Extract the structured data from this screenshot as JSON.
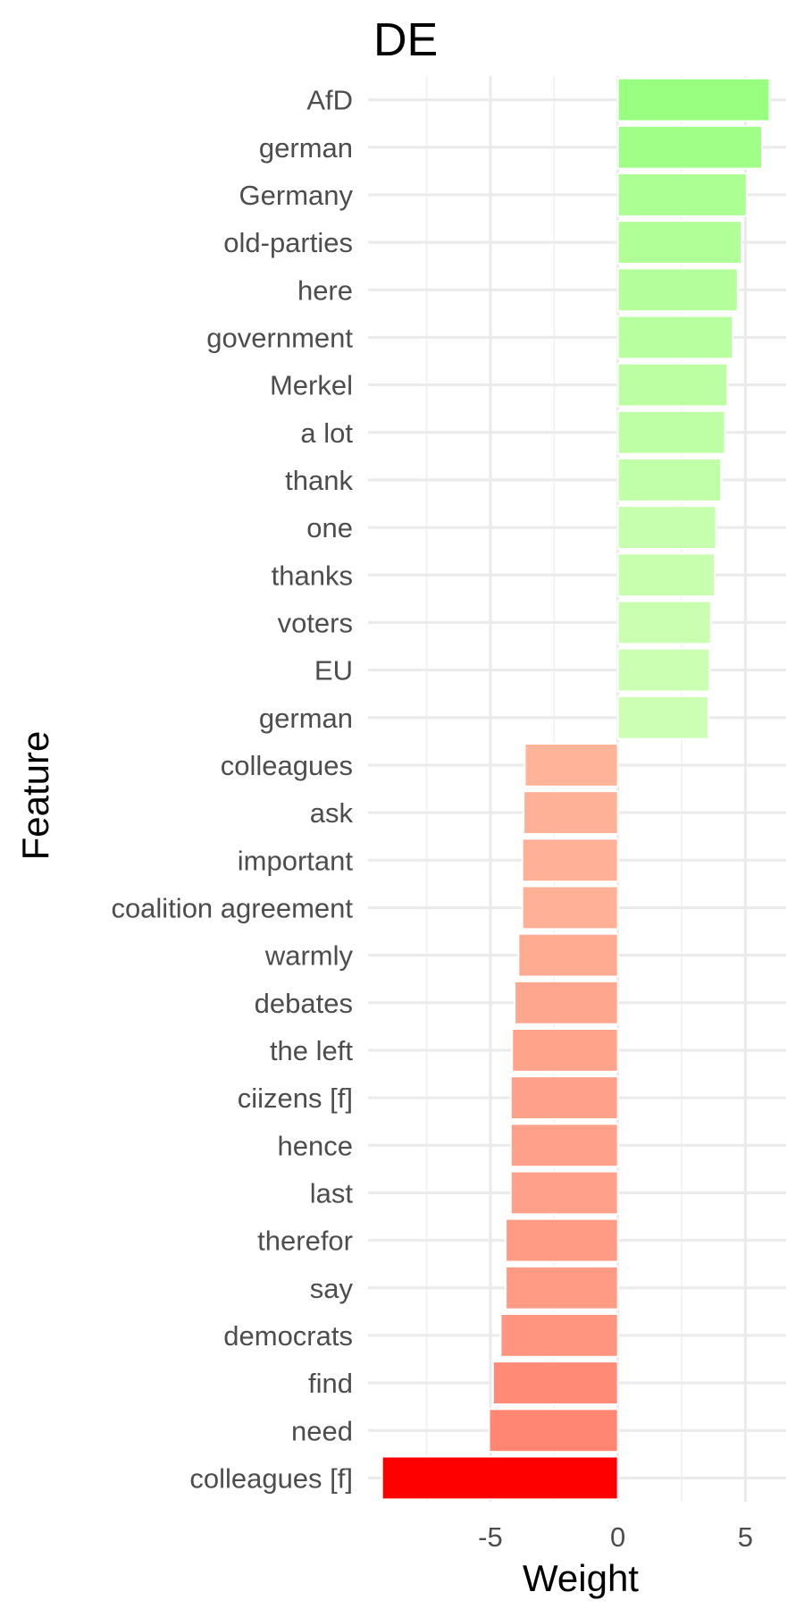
{
  "chart_data": {
    "type": "bar",
    "orientation": "horizontal",
    "title": "DE",
    "xlabel": "Weight",
    "ylabel": "Feature",
    "xlim": [
      -9.8,
      6.6
    ],
    "x_ticks": [
      -5,
      0,
      5
    ],
    "x_tick_labels": [
      "-5",
      "0",
      "5"
    ],
    "grid": true,
    "legend": "none",
    "categories": [
      "AfD",
      "german",
      "Germany",
      "old-parties",
      "here",
      "government",
      "Merkel",
      "a lot",
      "thank",
      "one",
      "thanks",
      "voters",
      "EU",
      "german ",
      "colleagues",
      "ask",
      "important",
      "coalition agreement",
      "warmly",
      "debates",
      "the left",
      "ciizens [f]",
      "hence",
      "last",
      "therefor",
      "say",
      "democrats",
      "find",
      "need",
      "colleagues [f]"
    ],
    "values": [
      5.95,
      5.65,
      5.05,
      4.85,
      4.7,
      4.5,
      4.3,
      4.2,
      4.05,
      3.85,
      3.8,
      3.65,
      3.6,
      3.55,
      -3.65,
      -3.7,
      -3.75,
      -3.75,
      -3.9,
      -4.05,
      -4.15,
      -4.2,
      -4.2,
      -4.2,
      -4.4,
      -4.4,
      -4.6,
      -4.9,
      -5.05,
      -9.25
    ],
    "colors": {
      "positive_strong": "#99ff80",
      "positive_weak": "#ccffb3",
      "negative_weak": "#ffb399",
      "negative_strong": "#ff0000",
      "grid": "#ebebeb",
      "tick_text": "#4d4d4d",
      "title_text": "#000000"
    }
  }
}
